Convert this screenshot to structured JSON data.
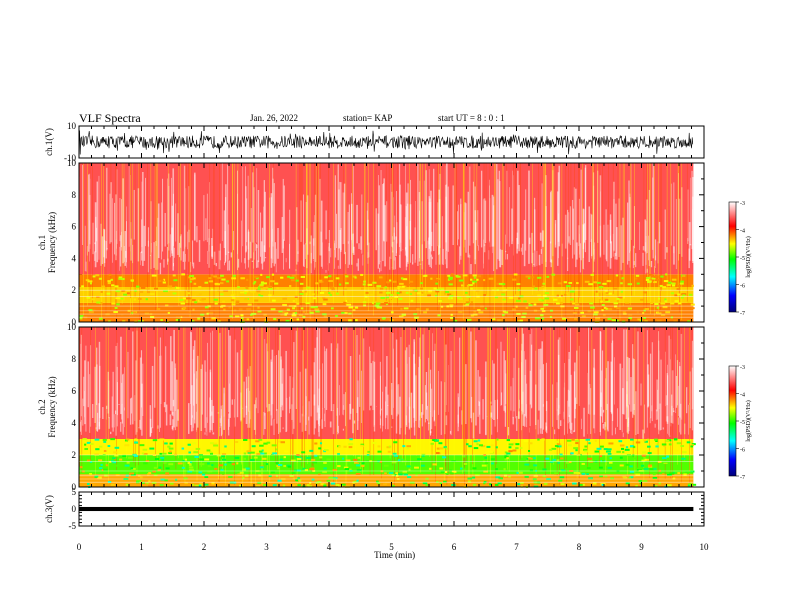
{
  "header": {
    "title": "VLF Spectra",
    "date": "Jan. 26, 2022",
    "station": "station= KAP",
    "start": "start UT =  8 : 0 : 1"
  },
  "chart_data": [
    {
      "type": "line",
      "panel": "ch.1 waveform",
      "ylabel": "ch.1(V)",
      "ylim": [
        -10,
        10
      ],
      "yticks": [
        "10",
        "-10"
      ],
      "xlim": [
        0,
        10
      ],
      "data_extent_min": 9.83,
      "description_values": {
        "typical_amplitude_V": [
          -4,
          4
        ]
      }
    },
    {
      "type": "heatmap",
      "panel": "ch.1 spectrogram",
      "ylabel": "ch.1\nFrequency (kHz)",
      "ylim": [
        0,
        10
      ],
      "yticks": [
        "0",
        "2",
        "4",
        "6",
        "8",
        "10"
      ],
      "xlim": [
        0,
        10
      ],
      "colorbar": {
        "label": "log(PSD)(V²/Hz)",
        "range": [
          -7,
          -3
        ],
        "ticks": [
          "-3",
          "-4",
          "-5",
          "-6",
          "-7"
        ]
      },
      "bands_kHz": [
        {
          "from": 0,
          "to": 1.2,
          "level": -4.2
        },
        {
          "from": 1.2,
          "to": 2.2,
          "level": -4.4
        },
        {
          "from": 2.2,
          "to": 3.0,
          "level": -4.2
        },
        {
          "from": 3.0,
          "to": 10,
          "level": -3.6
        }
      ]
    },
    {
      "type": "heatmap",
      "panel": "ch.2 spectrogram",
      "ylabel": "ch.2\nFrequency (kHz)",
      "ylim": [
        0,
        10
      ],
      "yticks": [
        "0",
        "2",
        "4",
        "6",
        "8",
        "10"
      ],
      "xlim": [
        0,
        10
      ],
      "colorbar": {
        "label": "log(PSD)(V²/Hz)",
        "range": [
          -7,
          -3
        ],
        "ticks": [
          "-3",
          "-4",
          "-5",
          "-6",
          "-7"
        ]
      },
      "bands_kHz": [
        {
          "from": 0,
          "to": 0.8,
          "level": -4.3
        },
        {
          "from": 0.8,
          "to": 2.0,
          "level": -4.9
        },
        {
          "from": 2.0,
          "to": 3.0,
          "level": -4.5
        },
        {
          "from": 3.0,
          "to": 10,
          "level": -3.6
        }
      ]
    },
    {
      "type": "line",
      "panel": "ch.3 waveform",
      "ylabel": "ch.3(V)",
      "ylim": [
        -5,
        5
      ],
      "yticks": [
        "5",
        "0",
        "-5"
      ],
      "xlim": [
        0,
        10
      ],
      "level_V": 0,
      "band_halfwidth_V": 0.6
    }
  ],
  "xaxis": {
    "label": "Time (min)",
    "ticks": [
      "0",
      "1",
      "2",
      "3",
      "4",
      "5",
      "6",
      "7",
      "8",
      "9",
      "10"
    ],
    "xlim": [
      0,
      10
    ],
    "data_end": 9.83
  },
  "colors": {
    "colormap": [
      "#00007a",
      "#0000ff",
      "#00ffff",
      "#00ff00",
      "#ffff00",
      "#ff0000",
      "#ffffff"
    ]
  }
}
